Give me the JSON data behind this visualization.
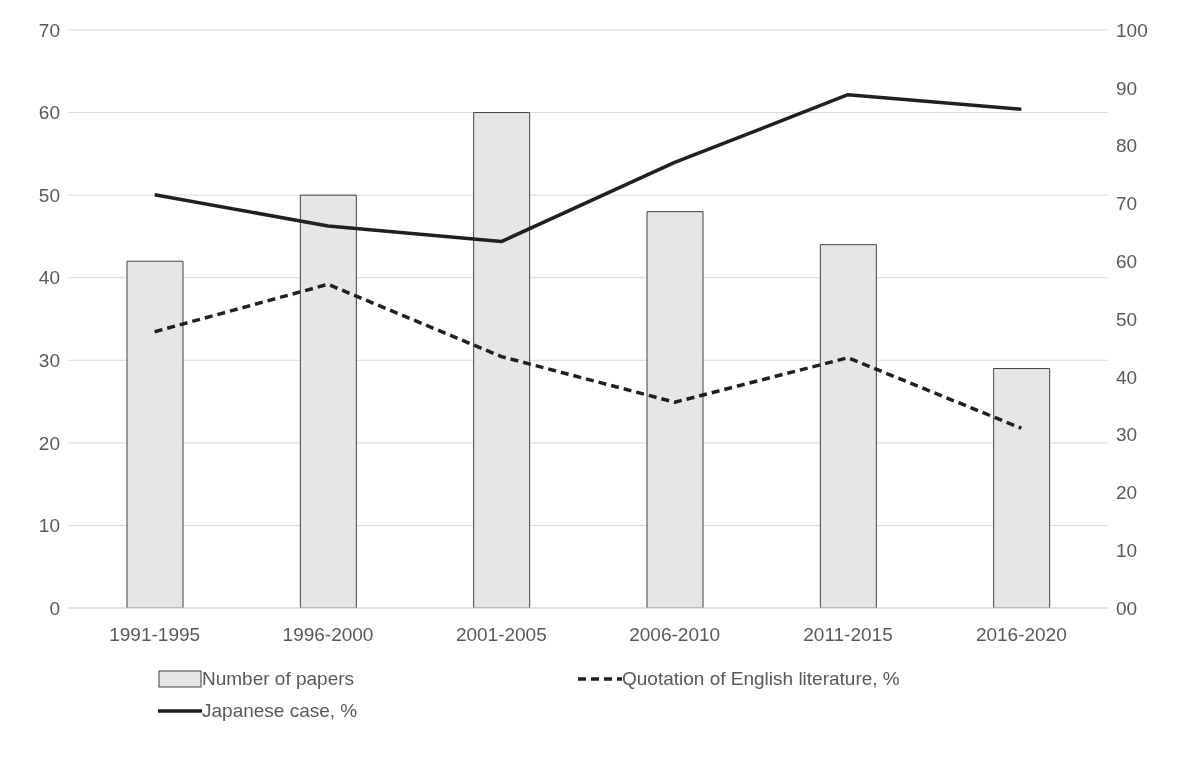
{
  "chart_data": {
    "type": "bar",
    "categories": [
      "1991-1995",
      "1996-2000",
      "2001-2005",
      "2006-2010",
      "2011-2015",
      "2016-2020"
    ],
    "series": [
      {
        "name": "Number of papers",
        "color": "#e6e6e6",
        "values": [
          42,
          50,
          60,
          48,
          44,
          29
        ]
      },
      {
        "name": "Quotation of English literature, %",
        "type": "line",
        "axis": "y2",
        "color": "#231f20",
        "line_style": "dashed",
        "values": [
          47.8,
          56.0,
          43.5,
          35.6,
          43.3,
          31.1
        ]
      },
      {
        "name": "Japanese case, %",
        "type": "line",
        "axis": "y2",
        "color": "#231f20",
        "line_style": "solid",
        "values": [
          71.5,
          66.1,
          63.4,
          77.1,
          88.8,
          86.3
        ]
      }
    ],
    "ylim": [
      0,
      70
    ],
    "yticks": [
      0,
      10,
      20,
      30,
      40,
      50,
      60,
      70
    ],
    "y2lim": [
      0,
      100
    ],
    "y2ticks": [
      {
        "value": 0,
        "label": "00"
      },
      10,
      20,
      30,
      40,
      50,
      60,
      70,
      80,
      90,
      100
    ],
    "grid": "y",
    "legend": "bottom",
    "marker": "none"
  }
}
